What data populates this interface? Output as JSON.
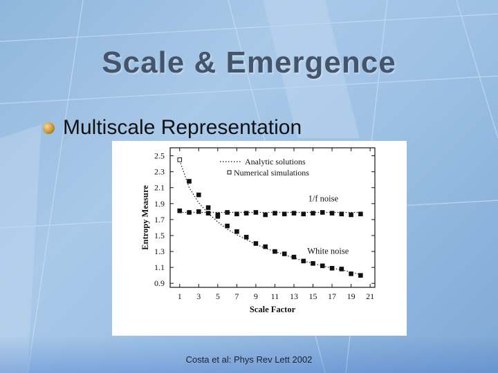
{
  "slide": {
    "title": "Scale & Emergence",
    "bullet": "Multiscale Representation",
    "citation": "Costa et al:  Phys Rev Lett  2002"
  },
  "chart_data": {
    "type": "scatter",
    "xlabel": "Scale Factor",
    "ylabel": "Entropy Measure",
    "xlim": [
      0,
      21.5
    ],
    "ylim": [
      0.85,
      2.6
    ],
    "xticks": [
      1,
      3,
      5,
      7,
      9,
      11,
      13,
      15,
      17,
      19,
      21
    ],
    "yticks": [
      0.9,
      1.1,
      1.3,
      1.5,
      1.7,
      1.9,
      2.1,
      2.3,
      2.5
    ],
    "legend": {
      "position": "top-right",
      "entries": [
        {
          "label": "Analytic solutions",
          "style": "dotted-line"
        },
        {
          "label": "Numerical simulations",
          "style": "open-square"
        }
      ]
    },
    "annotations": [
      "1/f noise",
      "White noise"
    ],
    "series": [
      {
        "name": "1/f noise",
        "x": [
          1,
          2,
          3,
          4,
          5,
          6,
          7,
          8,
          9,
          10,
          11,
          12,
          13,
          14,
          15,
          16,
          17,
          18,
          19,
          20
        ],
        "y": [
          1.81,
          1.79,
          1.8,
          1.78,
          1.76,
          1.79,
          1.77,
          1.78,
          1.79,
          1.76,
          1.78,
          1.77,
          1.78,
          1.77,
          1.78,
          1.79,
          1.78,
          1.77,
          1.76,
          1.77
        ]
      },
      {
        "name": "White noise",
        "x": [
          1,
          2,
          3,
          4,
          5,
          6,
          7,
          8,
          9,
          10,
          11,
          12,
          13,
          14,
          15,
          16,
          17,
          18,
          19,
          20
        ],
        "y": [
          2.45,
          2.18,
          2.01,
          1.85,
          1.74,
          1.62,
          1.55,
          1.48,
          1.4,
          1.36,
          1.3,
          1.27,
          1.23,
          1.18,
          1.15,
          1.12,
          1.09,
          1.08,
          1.02,
          1.0
        ]
      }
    ],
    "analytic_curves": [
      {
        "name": "1/f noise",
        "y": [
          1.79,
          1.79
        ]
      },
      {
        "name": "White noise",
        "x": [
          1,
          2,
          3,
          4,
          5,
          6,
          7,
          8,
          9,
          10,
          11,
          12,
          13,
          14,
          15,
          16,
          17,
          18,
          19,
          20
        ],
        "y": [
          2.44,
          2.1,
          1.91,
          1.78,
          1.67,
          1.58,
          1.51,
          1.45,
          1.39,
          1.34,
          1.3,
          1.26,
          1.22,
          1.18,
          1.15,
          1.12,
          1.09,
          1.07,
          1.04,
          1.01
        ]
      }
    ]
  }
}
